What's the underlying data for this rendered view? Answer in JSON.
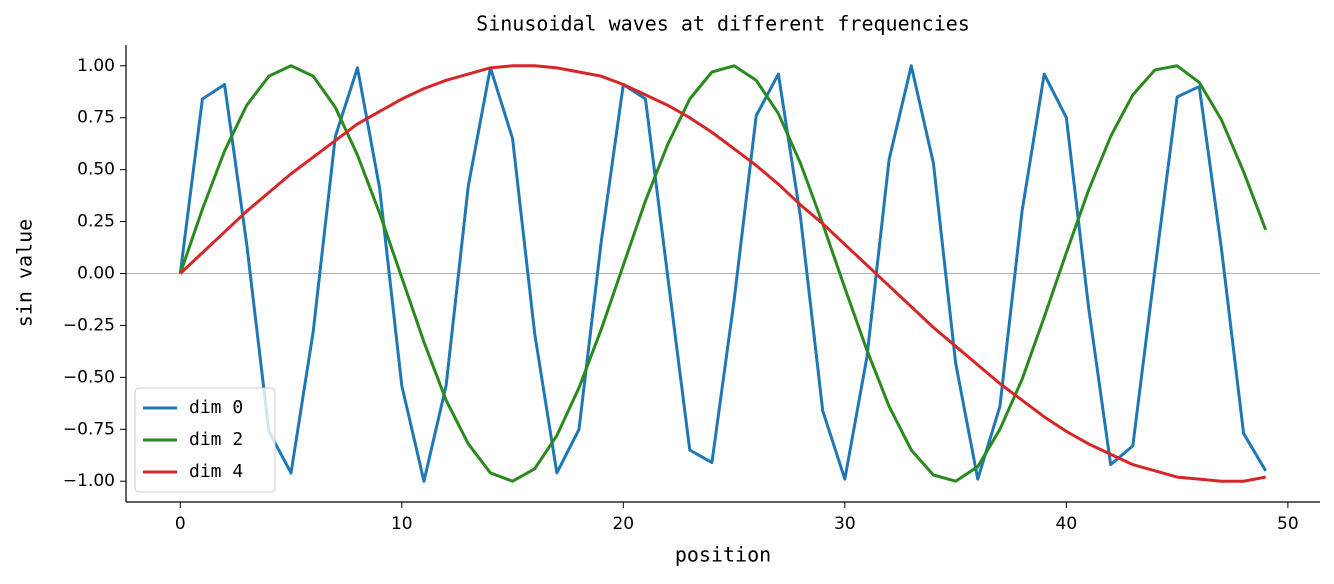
{
  "chart_data": {
    "type": "line",
    "title": "Sinusoidal waves at different frequencies",
    "xlabel": "position",
    "ylabel": "sin value",
    "x": [
      0,
      1,
      2,
      3,
      4,
      5,
      6,
      7,
      8,
      9,
      10,
      11,
      12,
      13,
      14,
      15,
      16,
      17,
      18,
      19,
      20,
      21,
      22,
      23,
      24,
      25,
      26,
      27,
      28,
      29,
      30,
      31,
      32,
      33,
      34,
      35,
      36,
      37,
      38,
      39,
      40,
      41,
      42,
      43,
      44,
      45,
      46,
      47,
      48,
      49
    ],
    "series": [
      {
        "name": "dim 0",
        "color": "#1f77b4",
        "values": [
          0,
          0.84,
          0.91,
          0.14,
          -0.76,
          -0.96,
          -0.28,
          0.66,
          0.99,
          0.41,
          -0.54,
          -1.0,
          -0.54,
          0.42,
          0.99,
          0.65,
          -0.29,
          -0.96,
          -0.75,
          0.15,
          0.91,
          0.84,
          -0.01,
          -0.85,
          -0.91,
          -0.13,
          0.76,
          0.96,
          0.27,
          -0.66,
          -0.99,
          -0.4,
          0.55,
          1.0,
          0.53,
          -0.43,
          -0.99,
          -0.64,
          0.3,
          0.96,
          0.75,
          -0.16,
          -0.92,
          -0.83,
          0.02,
          0.85,
          0.9,
          0.12,
          -0.77,
          -0.95
        ]
      },
      {
        "name": "dim 2",
        "color": "#2a8a1e",
        "values": [
          0,
          0.31,
          0.59,
          0.81,
          0.95,
          1.0,
          0.95,
          0.8,
          0.57,
          0.29,
          -0.02,
          -0.33,
          -0.61,
          -0.82,
          -0.96,
          -1.0,
          -0.94,
          -0.78,
          -0.55,
          -0.27,
          0.04,
          0.35,
          0.62,
          0.84,
          0.97,
          1.0,
          0.93,
          0.77,
          0.53,
          0.24,
          -0.07,
          -0.37,
          -0.64,
          -0.85,
          -0.97,
          -1.0,
          -0.93,
          -0.75,
          -0.51,
          -0.21,
          0.1,
          0.4,
          0.66,
          0.86,
          0.98,
          1.0,
          0.92,
          0.74,
          0.49,
          0.21
        ]
      },
      {
        "name": "dim 4",
        "color": "#d62728",
        "values": [
          0,
          0.1,
          0.2,
          0.3,
          0.39,
          0.48,
          0.56,
          0.64,
          0.72,
          0.78,
          0.84,
          0.89,
          0.93,
          0.96,
          0.99,
          1.0,
          1.0,
          0.99,
          0.97,
          0.95,
          0.91,
          0.86,
          0.81,
          0.75,
          0.68,
          0.6,
          0.52,
          0.43,
          0.33,
          0.24,
          0.14,
          0.04,
          -0.06,
          -0.16,
          -0.26,
          -0.35,
          -0.44,
          -0.53,
          -0.61,
          -0.69,
          -0.76,
          -0.82,
          -0.87,
          -0.92,
          -0.95,
          -0.98,
          -0.99,
          -1.0,
          -1.0,
          -0.98
        ]
      }
    ],
    "xlim": [
      -2.45,
      51.45
    ],
    "ylim": [
      -1.1,
      1.1
    ],
    "xticks": [
      0,
      10,
      20,
      30,
      40,
      50
    ],
    "yticks": [
      {
        "value": -1,
        "label": "−1.00"
      },
      {
        "value": -0.75,
        "label": "−0.75"
      },
      {
        "value": -0.5,
        "label": "−0.50"
      },
      {
        "value": -0.25,
        "label": "−0.25"
      },
      {
        "value": 0,
        "label": "0.00"
      },
      {
        "value": 0.25,
        "label": "0.25"
      },
      {
        "value": 0.5,
        "label": "0.50"
      },
      {
        "value": 0.75,
        "label": "0.75"
      },
      {
        "value": 1,
        "label": "1.00"
      }
    ],
    "axhline": 0,
    "legend": "lower left"
  }
}
